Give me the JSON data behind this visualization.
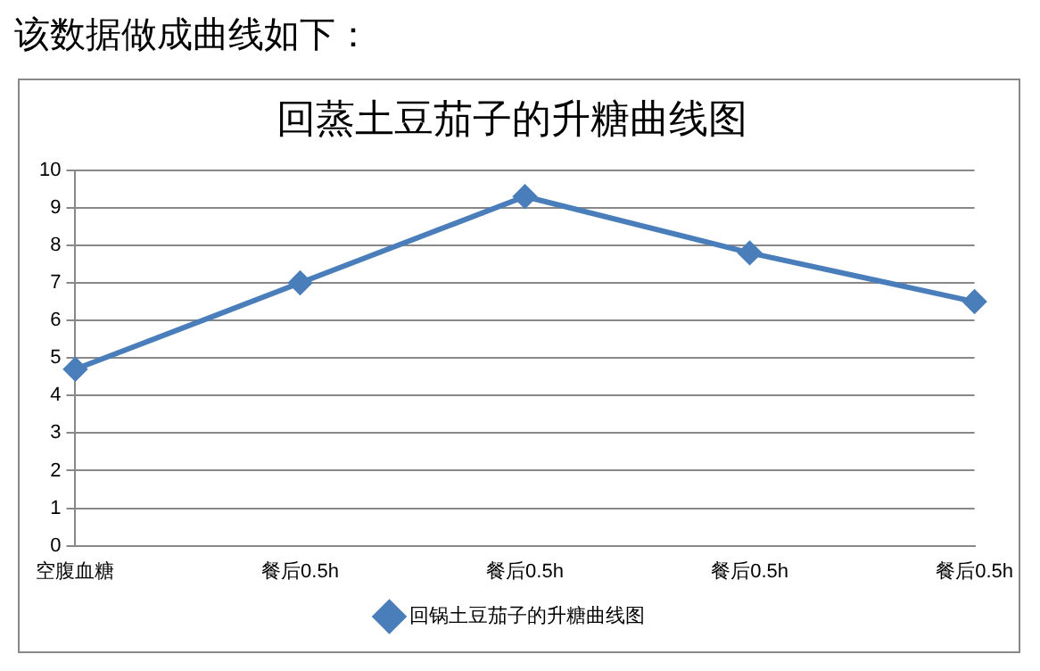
{
  "chart_data": {
    "type": "line",
    "title": "回蒸土豆茄子的升糖曲线图",
    "annotations": [
      "该数据做成曲线如下："
    ],
    "categories": [
      "空腹血糖",
      "餐后0.5h",
      "餐后0.5h",
      "餐后0.5h",
      "餐后0.5h"
    ],
    "series": [
      {
        "name": "回锅土豆茄子的升糖曲线图",
        "color": "#4a7ebb",
        "values": [
          4.7,
          7.0,
          9.3,
          7.8,
          6.5
        ]
      }
    ],
    "ylim": [
      0,
      10
    ],
    "yticks": [
      0,
      1,
      2,
      3,
      4,
      5,
      6,
      7,
      8,
      9,
      10
    ],
    "grid": "y",
    "legend": "bottom",
    "marker": "diamond",
    "line_style": "solid"
  }
}
